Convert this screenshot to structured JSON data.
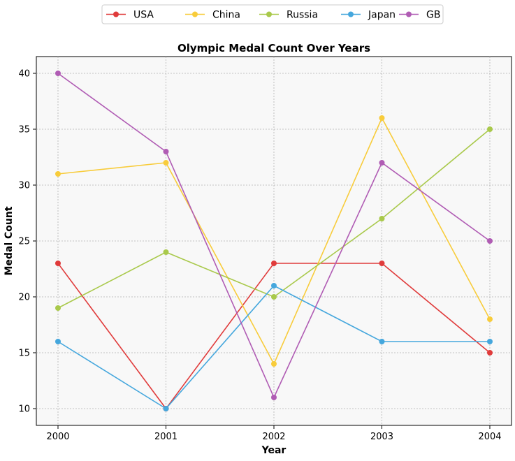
{
  "chart_data": {
    "type": "line",
    "title": "Olympic Medal Count Over Years",
    "xlabel": "Year",
    "ylabel": "Medal Count",
    "x": [
      "2000",
      "2001",
      "2002",
      "2003",
      "2004"
    ],
    "ylim": [
      8.5,
      41.5
    ],
    "yticks": [
      "10",
      "15",
      "20",
      "25",
      "30",
      "35",
      "40"
    ],
    "grid": true,
    "legend_position": "top-center",
    "series": [
      {
        "name": "USA",
        "color": "#e03b3b",
        "values": [
          23,
          10,
          23,
          23,
          15
        ]
      },
      {
        "name": "China",
        "color": "#f8cc3b",
        "values": [
          31,
          32,
          14,
          36,
          18
        ]
      },
      {
        "name": "Russia",
        "color": "#a9c94b",
        "values": [
          19,
          24,
          20,
          27,
          35
        ]
      },
      {
        "name": "Japan",
        "color": "#45a7dd",
        "values": [
          16,
          10,
          21,
          16,
          16
        ]
      },
      {
        "name": "GB",
        "color": "#b05cb4",
        "values": [
          40,
          33,
          11,
          32,
          25
        ]
      }
    ]
  }
}
